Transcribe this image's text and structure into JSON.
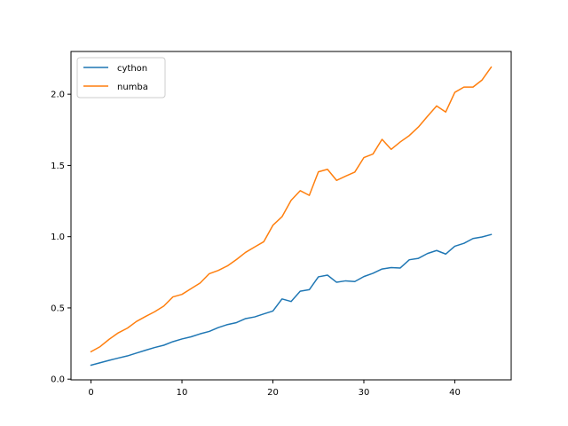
{
  "chart_data": {
    "type": "line",
    "title": "",
    "xlabel": "",
    "ylabel": "",
    "xlim": [
      -2.2,
      46.2
    ],
    "ylim": [
      -0.005,
      2.3
    ],
    "grid": false,
    "legend_position": "top-left",
    "xticks": [
      0,
      10,
      20,
      30,
      40
    ],
    "xtick_labels": [
      "0",
      "10",
      "20",
      "30",
      "40"
    ],
    "yticks": [
      0.0,
      0.5,
      1.0,
      1.5,
      2.0
    ],
    "ytick_labels": [
      "0.0",
      "0.5",
      "1.0",
      "1.5",
      "2.0"
    ],
    "x": [
      0,
      1,
      2,
      3,
      4,
      5,
      6,
      7,
      8,
      9,
      10,
      11,
      12,
      13,
      14,
      15,
      16,
      17,
      18,
      19,
      20,
      21,
      22,
      23,
      24,
      25,
      26,
      27,
      28,
      29,
      30,
      31,
      32,
      33,
      34,
      35,
      36,
      37,
      38,
      39,
      40,
      41,
      42,
      43,
      44
    ],
    "series": [
      {
        "name": "cython",
        "color": "#1f77b4",
        "values": [
          0.098,
          0.115,
          0.132,
          0.148,
          0.163,
          0.183,
          0.203,
          0.222,
          0.238,
          0.263,
          0.282,
          0.297,
          0.318,
          0.335,
          0.362,
          0.383,
          0.397,
          0.425,
          0.437,
          0.458,
          0.478,
          0.563,
          0.545,
          0.617,
          0.628,
          0.718,
          0.73,
          0.68,
          0.69,
          0.685,
          0.72,
          0.743,
          0.773,
          0.783,
          0.78,
          0.838,
          0.848,
          0.882,
          0.903,
          0.878,
          0.933,
          0.953,
          0.987,
          0.998,
          1.015
        ]
      },
      {
        "name": "numba",
        "color": "#ff7f0e",
        "values": [
          0.193,
          0.228,
          0.28,
          0.325,
          0.358,
          0.405,
          0.44,
          0.473,
          0.513,
          0.577,
          0.595,
          0.635,
          0.675,
          0.74,
          0.763,
          0.795,
          0.84,
          0.89,
          0.928,
          0.965,
          1.08,
          1.14,
          1.255,
          1.323,
          1.29,
          1.455,
          1.473,
          1.395,
          1.425,
          1.453,
          1.555,
          1.58,
          1.683,
          1.613,
          1.665,
          1.71,
          1.77,
          1.845,
          1.918,
          1.875,
          2.013,
          2.05,
          2.05,
          2.1,
          2.19
        ]
      }
    ]
  }
}
